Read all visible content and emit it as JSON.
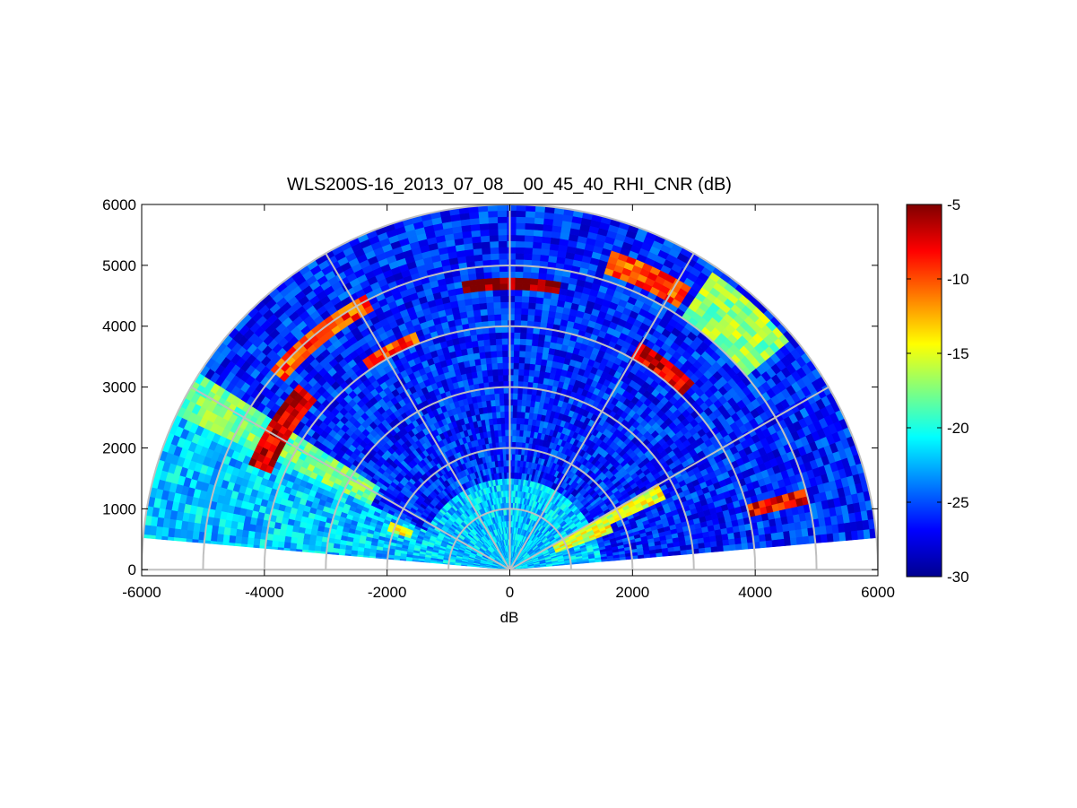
{
  "chart_data": {
    "type": "heatmap",
    "subtype": "polar-rhi-sector",
    "title": "WLS200S-16_2013_07_08__00_45_40_RHI_CNR (dB)",
    "xlabel": "dB",
    "ylabel": "",
    "xlim": [
      -6000,
      6000
    ],
    "ylim": [
      -100,
      6000
    ],
    "x_ticks": [
      -6000,
      -4000,
      -2000,
      0,
      2000,
      4000,
      6000
    ],
    "y_ticks": [
      0,
      1000,
      2000,
      3000,
      4000,
      5000,
      6000
    ],
    "max_range": 6000,
    "elevation_range_deg": [
      5,
      175
    ],
    "range_rings": [
      1000,
      2000,
      3000,
      4000,
      5000,
      6000
    ],
    "radial_spokes_deg": [
      0,
      30,
      60,
      90,
      120,
      150,
      180
    ],
    "colorbar": {
      "colormap": "jet",
      "clim": [
        -30,
        -5
      ],
      "ticks": [
        -5,
        -10,
        -15,
        -20,
        -25,
        -30
      ]
    },
    "background_cnr_db": -26,
    "features": [
      {
        "label": "upper layer arc",
        "range": [
          4650,
          4800
        ],
        "angle_deg": [
          80,
          100
        ],
        "cnr_db": -5
      },
      {
        "label": "upper layer arc west",
        "range": [
          4800,
          5100
        ],
        "angle_deg": [
          118,
          140
        ],
        "cnr_db": -10
      },
      {
        "label": "upper layer east patch",
        "range": [
          5100,
          5500
        ],
        "angle_deg": [
          57,
          73
        ],
        "cnr_db": -10
      },
      {
        "label": "east outer patch",
        "range": [
          5000,
          5900
        ],
        "angle_deg": [
          40,
          56
        ],
        "cnr_db": -17
      },
      {
        "label": "lower layer west",
        "range": [
          4200,
          4600
        ],
        "angle_deg": [
          138,
          158
        ],
        "cnr_db": -7
      },
      {
        "label": "lower layer west inner",
        "range": [
          4000,
          4200
        ],
        "angle_deg": [
          112,
          125
        ],
        "cnr_db": -10
      },
      {
        "label": "lower layer east",
        "range": [
          4000,
          4300
        ],
        "angle_deg": [
          45,
          60
        ],
        "cnr_db": -7
      },
      {
        "label": "east aerosol beam",
        "range": [
          1800,
          2800
        ],
        "angle_deg": [
          25,
          31
        ],
        "cnr_db": -15
      },
      {
        "label": "east low layer",
        "range": [
          4000,
          5000
        ],
        "angle_deg": [
          12,
          16
        ],
        "cnr_db": -8
      },
      {
        "label": "west beam",
        "range": [
          2500,
          6000
        ],
        "angle_deg": [
          147,
          155
        ],
        "cnr_db": -18
      },
      {
        "label": "west low elevations",
        "range": [
          1500,
          6000
        ],
        "angle_deg": [
          155,
          175
        ],
        "cnr_db": -22
      },
      {
        "label": "near-field west",
        "range": [
          1700,
          2100
        ],
        "angle_deg": [
          158,
          163
        ],
        "cnr_db": -15
      },
      {
        "label": "near-surface east",
        "range": [
          800,
          1800
        ],
        "angle_deg": [
          20,
          30
        ],
        "cnr_db": -15
      },
      {
        "label": "near-surface band",
        "range": [
          0,
          1500
        ],
        "angle_deg": [
          5,
          175
        ],
        "cnr_db": -22
      }
    ]
  }
}
